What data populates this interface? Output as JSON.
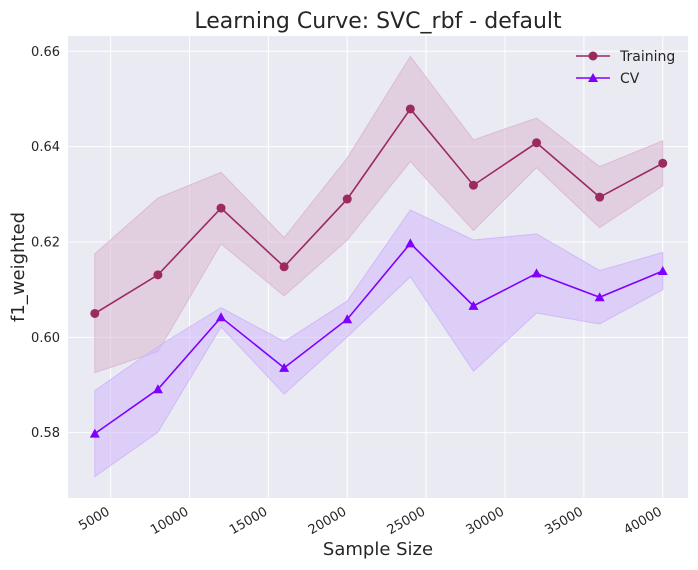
{
  "chart_data": {
    "type": "line",
    "title": "Learning Curve: SVC_rbf - default",
    "xlabel": "Sample Size",
    "ylabel": "f1_weighted",
    "xlim": [
      2300,
      41600
    ],
    "ylim": [
      0.5663,
      0.6632
    ],
    "x_ticks": [
      5000,
      10000,
      15000,
      20000,
      25000,
      30000,
      35000,
      40000
    ],
    "y_ticks": [
      0.58,
      0.6,
      0.62,
      0.64,
      0.66
    ],
    "y_tick_labels": [
      "0.58",
      "0.60",
      "0.62",
      "0.64",
      "0.66"
    ],
    "grid": true,
    "legend_position": "top-right",
    "x": [
      4000,
      8000,
      12000,
      16000,
      20000,
      24000,
      28000,
      32000,
      36000,
      40000
    ],
    "series": [
      {
        "name": "Training",
        "color": "#9b2a5e",
        "marker": "circle",
        "values": [
          0.605,
          0.6131,
          0.6271,
          0.6148,
          0.629,
          0.6479,
          0.6319,
          0.6408,
          0.6294,
          0.6365
        ],
        "upper": [
          0.6175,
          0.6292,
          0.6346,
          0.6209,
          0.6376,
          0.6589,
          0.6414,
          0.646,
          0.6358,
          0.6412
        ],
        "lower": [
          0.5926,
          0.597,
          0.6196,
          0.6087,
          0.6204,
          0.6369,
          0.6224,
          0.6356,
          0.623,
          0.6318
        ],
        "band_color": "#d9b8d2"
      },
      {
        "name": "CV",
        "color": "#7f00ff",
        "marker": "triangle",
        "values": [
          0.5798,
          0.5891,
          0.6042,
          0.5936,
          0.6038,
          0.6197,
          0.6066,
          0.6134,
          0.6084,
          0.6139
        ],
        "upper": [
          0.5888,
          0.5981,
          0.6062,
          0.5991,
          0.6076,
          0.6267,
          0.6204,
          0.6217,
          0.614,
          0.6178
        ],
        "lower": [
          0.5708,
          0.5801,
          0.6022,
          0.5881,
          0.6001,
          0.6127,
          0.5929,
          0.6051,
          0.6028,
          0.61
        ],
        "band_color": "#cfb6fb"
      }
    ]
  }
}
